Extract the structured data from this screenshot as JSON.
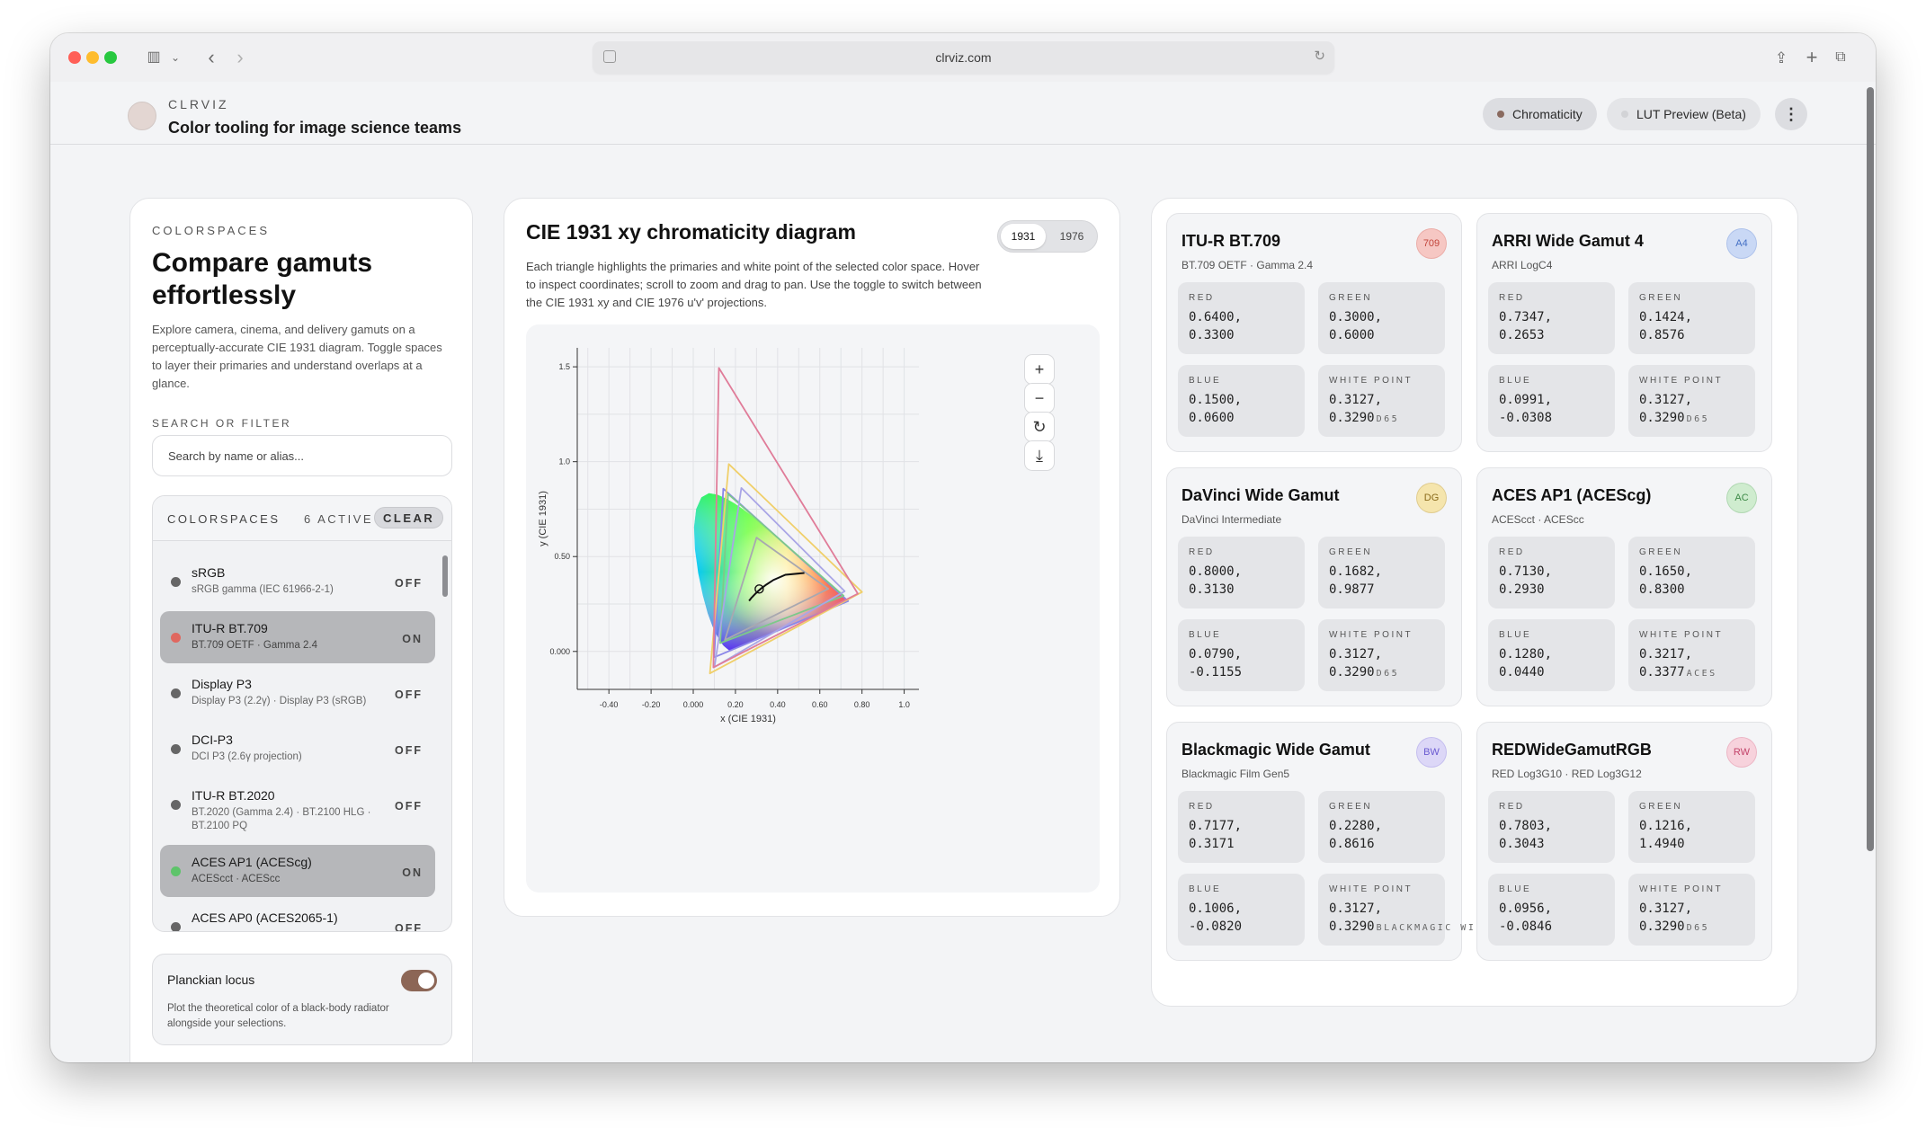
{
  "browser": {
    "url": "clrviz.com"
  },
  "header": {
    "brand": "CLRVIZ",
    "tagline": "Color tooling for image science teams",
    "tabs": [
      {
        "label": "Chromaticity",
        "active": true,
        "dot_color": "#8a6a5f"
      },
      {
        "label": "LUT Preview (Beta)",
        "active": false,
        "dot_color": "#d2d3d6"
      }
    ]
  },
  "sidebar": {
    "eyebrow": "COLORSPACES",
    "title": "Compare gamuts effortlessly",
    "description": "Explore camera, cinema, and delivery gamuts on a perceptually-accurate CIE 1931 diagram. Toggle spaces to layer their primaries and understand overlaps at a glance.",
    "search_label": "SEARCH OR FILTER",
    "search_placeholder": "Search by name or alias...",
    "panel_title": "COLORSPACES",
    "active_count": "6 ACTIVE",
    "clear_label": "CLEAR",
    "items": [
      {
        "name": "sRGB",
        "sub": "sRGB gamma (IEC 61966-2-1)",
        "state": "OFF",
        "dot": "#666666"
      },
      {
        "name": "ITU-R BT.709",
        "sub": "BT.709 OETF · Gamma 2.4",
        "state": "ON",
        "dot": "#e0675f"
      },
      {
        "name": "Display P3",
        "sub": "Display P3 (2.2γ) · Display P3 (sRGB)",
        "state": "OFF",
        "dot": "#666666"
      },
      {
        "name": "DCI-P3",
        "sub": "DCI P3 (2.6γ projection)",
        "state": "OFF",
        "dot": "#666666"
      },
      {
        "name": "ITU-R BT.2020",
        "sub": "BT.2020 (Gamma 2.4) · BT.2100 HLG · BT.2100 PQ",
        "state": "OFF",
        "dot": "#666666"
      },
      {
        "name": "ACES AP1 (ACEScg)",
        "sub": "ACEScct · ACEScc",
        "state": "ON",
        "dot": "#5ec46a"
      },
      {
        "name": "ACES AP0 (ACES2065-1)",
        "sub": "",
        "state": "OFF",
        "dot": "#666666"
      }
    ],
    "planckian": {
      "title": "Planckian locus",
      "description": "Plot the theoretical color of a black-body radiator alongside your selections.",
      "enabled": true
    }
  },
  "diagram": {
    "title": "CIE 1931 xy chromaticity diagram",
    "toggle": [
      "1931",
      "1976"
    ],
    "active_toggle": "1931",
    "description": "Each triangle highlights the primaries and white point of the selected color space. Hover to inspect coordinates; scroll to zoom and drag to pan. Use the toggle to switch between the CIE 1931 xy and CIE 1976 u'v' projections.",
    "controls": [
      {
        "name": "zoom-in",
        "glyph": "+"
      },
      {
        "name": "zoom-out",
        "glyph": "−"
      },
      {
        "name": "reset",
        "glyph": "↻"
      },
      {
        "name": "download",
        "glyph": "⤓"
      }
    ]
  },
  "chart_data": {
    "type": "scatter",
    "title": "",
    "xlabel": "x (CIE 1931)",
    "ylabel": "y (CIE 1931)",
    "xlim": [
      -0.55,
      1.07
    ],
    "ylim": [
      -0.2,
      1.6
    ],
    "xticks": [
      -0.4,
      -0.2,
      0.0,
      0.2,
      0.4,
      0.6,
      0.8,
      1.0
    ],
    "xtick_labels": [
      "-0.40",
      "-0.20",
      "0.000",
      "0.20",
      "0.40",
      "0.60",
      "0.80",
      "1.0"
    ],
    "yticks": [
      0.0,
      0.5,
      1.0,
      1.5
    ],
    "ytick_labels": [
      "0.000",
      "0.50",
      "1.0",
      "1.5"
    ],
    "grid": true,
    "series": [
      {
        "name": "ITU-R BT.709",
        "color": "#a8a8b0",
        "points": [
          [
            0.64,
            0.33
          ],
          [
            0.3,
            0.6
          ],
          [
            0.15,
            0.06
          ]
        ]
      },
      {
        "name": "ARRI Wide Gamut 4",
        "color": "#8a86e8",
        "points": [
          [
            0.7347,
            0.2653
          ],
          [
            0.1424,
            0.8576
          ],
          [
            0.0991,
            -0.0308
          ]
        ]
      },
      {
        "name": "DaVinci Wide Gamut",
        "color": "#f0cf6a",
        "points": [
          [
            0.8,
            0.313
          ],
          [
            0.1682,
            0.9877
          ],
          [
            0.079,
            -0.1155
          ]
        ]
      },
      {
        "name": "ACES AP1 (ACEScg)",
        "color": "#7dc98a",
        "points": [
          [
            0.713,
            0.293
          ],
          [
            0.165,
            0.83
          ],
          [
            0.128,
            0.044
          ]
        ]
      },
      {
        "name": "Blackmagic Wide Gamut",
        "color": "#a9a5e6",
        "points": [
          [
            0.7177,
            0.3171
          ],
          [
            0.228,
            0.8616
          ],
          [
            0.1006,
            -0.082
          ]
        ]
      },
      {
        "name": "REDWideGamutRGB",
        "color": "#e07c99",
        "points": [
          [
            0.7803,
            0.3043
          ],
          [
            0.1216,
            1.494
          ],
          [
            0.0956,
            -0.0846
          ]
        ]
      }
    ],
    "planckian_locus": [
      [
        0.5268,
        0.4133
      ],
      [
        0.4369,
        0.4041
      ],
      [
        0.3805,
        0.3768
      ],
      [
        0.3451,
        0.3516
      ],
      [
        0.3221,
        0.3318
      ],
      [
        0.3064,
        0.3166
      ],
      [
        0.2952,
        0.3048
      ],
      [
        0.2869,
        0.2956
      ],
      [
        0.2807,
        0.2884
      ],
      [
        0.2757,
        0.2825
      ],
      [
        0.2648,
        0.2666
      ]
    ],
    "hover_point": [
      0.3127,
      0.329
    ]
  },
  "colorspaces": [
    {
      "name": "ITU-R BT.709",
      "sub": "BT.709 OETF · Gamma 2.4",
      "badge": "709",
      "badge_color": "#f6c7c3",
      "badge_text": "#c2443a",
      "red": [
        "0.6400,",
        "0.3300"
      ],
      "green": [
        "0.3000,",
        "0.6000"
      ],
      "blue": [
        "0.1500,",
        "0.0600"
      ],
      "white": [
        "0.3127,",
        "0.3290"
      ],
      "white_tag": "D65"
    },
    {
      "name": "ARRI Wide Gamut 4",
      "sub": "ARRI LogC4",
      "badge": "A4",
      "badge_color": "#c9d8f5",
      "badge_text": "#4470c5",
      "red": [
        "0.7347,",
        "0.2653"
      ],
      "green": [
        "0.1424,",
        "0.8576"
      ],
      "blue": [
        "0.0991,",
        "-0.0308"
      ],
      "white": [
        "0.3127,",
        "0.3290"
      ],
      "white_tag": "D65"
    },
    {
      "name": "DaVinci Wide Gamut",
      "sub": "DaVinci Intermediate",
      "badge": "DG",
      "badge_color": "#f5e5ad",
      "badge_text": "#8a6a1a",
      "red": [
        "0.8000,",
        "0.3130"
      ],
      "green": [
        "0.1682,",
        "0.9877"
      ],
      "blue": [
        "0.0790,",
        "-0.1155"
      ],
      "white": [
        "0.3127,",
        "0.3290"
      ],
      "white_tag": "D65"
    },
    {
      "name": "ACES AP1 (ACEScg)",
      "sub": "ACEScct · ACEScc",
      "badge": "AC",
      "badge_color": "#cfeccf",
      "badge_text": "#3d8a47",
      "red": [
        "0.7130,",
        "0.2930"
      ],
      "green": [
        "0.1650,",
        "0.8300"
      ],
      "blue": [
        "0.1280,",
        "0.0440"
      ],
      "white": [
        "0.3217,",
        "0.3377"
      ],
      "white_tag": "ACES"
    },
    {
      "name": "Blackmagic Wide Gamut",
      "sub": "Blackmagic Film Gen5",
      "badge": "BW",
      "badge_color": "#dcd7f7",
      "badge_text": "#6a5ad1",
      "red": [
        "0.7177,",
        "0.3171"
      ],
      "green": [
        "0.2280,",
        "0.8616"
      ],
      "blue": [
        "0.1006,",
        "-0.0820"
      ],
      "white": [
        "0.3127,",
        "0.3290"
      ],
      "white_tag": "BLACKMAGIC WIDE GAMUT"
    },
    {
      "name": "REDWideGamutRGB",
      "sub": "RED Log3G10 · RED Log3G12",
      "badge": "RW",
      "badge_color": "#f7d2dc",
      "badge_text": "#c3446a",
      "red": [
        "0.7803,",
        "0.3043"
      ],
      "green": [
        "0.1216,",
        "1.4940"
      ],
      "blue": [
        "0.0956,",
        "-0.0846"
      ],
      "white": [
        "0.3127,",
        "0.3290"
      ],
      "white_tag": "D65"
    }
  ],
  "labels": {
    "red": "RED",
    "green": "GREEN",
    "blue": "BLUE",
    "white": "WHITE POINT"
  }
}
